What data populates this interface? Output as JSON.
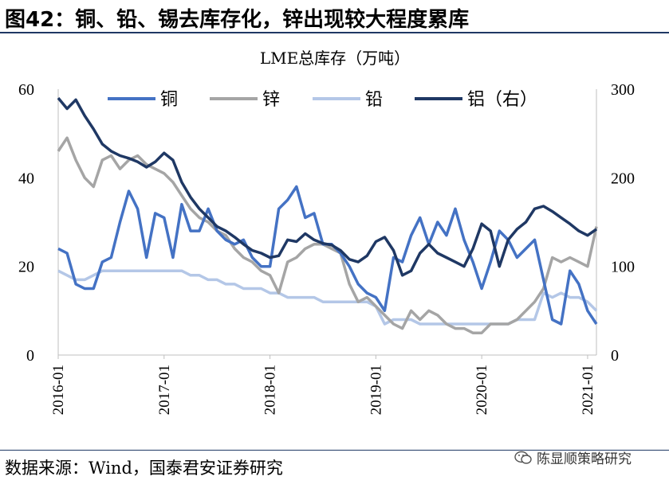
{
  "header": {
    "title": "图42：铜、铅、锡去库存化，锌出现较大程度累库"
  },
  "footer": {
    "source": "数据来源：Wind，国泰君安证券研究",
    "watermark": "陈显顺策略研究"
  },
  "icons": {
    "watermark": "wechat-icon"
  },
  "colors": {
    "copper": "#4472c4",
    "zinc": "#a5a5a5",
    "lead": "#b4c7e7",
    "aluminum": "#1f3864",
    "rule": "#1f3864"
  },
  "chart_data": {
    "type": "line",
    "title": "LME总库存（万吨）",
    "x_ticks": [
      "2016-01",
      "2017-01",
      "2018-01",
      "2019-01",
      "2020-01",
      "2021-01"
    ],
    "y_left": {
      "min": 0,
      "max": 60,
      "ticks": [
        "0",
        "20",
        "40",
        "60"
      ]
    },
    "y_right": {
      "min": 0,
      "max": 300,
      "ticks": [
        "0",
        "100",
        "200",
        "300"
      ]
    },
    "legend_position": "top",
    "grid": false,
    "x_range": [
      "2016-01",
      "2021-02"
    ],
    "series": [
      {
        "name": "铜",
        "axis": "left",
        "key": "copper",
        "points": [
          [
            "2016-01",
            24
          ],
          [
            "2016-02",
            23
          ],
          [
            "2016-03",
            16
          ],
          [
            "2016-04",
            15
          ],
          [
            "2016-05",
            15
          ],
          [
            "2016-06",
            21
          ],
          [
            "2016-07",
            22
          ],
          [
            "2016-08",
            30
          ],
          [
            "2016-09",
            37
          ],
          [
            "2016-10",
            33
          ],
          [
            "2016-11",
            22
          ],
          [
            "2016-12",
            32
          ],
          [
            "2017-01",
            31
          ],
          [
            "2017-02",
            22
          ],
          [
            "2017-03",
            34
          ],
          [
            "2017-04",
            28
          ],
          [
            "2017-05",
            28
          ],
          [
            "2017-06",
            33
          ],
          [
            "2017-07",
            28
          ],
          [
            "2017-08",
            26
          ],
          [
            "2017-09",
            25
          ],
          [
            "2017-10",
            26
          ],
          [
            "2017-11",
            22
          ],
          [
            "2017-12",
            20
          ],
          [
            "2018-01",
            20
          ],
          [
            "2018-02",
            33
          ],
          [
            "2018-03",
            35
          ],
          [
            "2018-04",
            38
          ],
          [
            "2018-05",
            31
          ],
          [
            "2018-06",
            32
          ],
          [
            "2018-07",
            25
          ],
          [
            "2018-08",
            25
          ],
          [
            "2018-09",
            23
          ],
          [
            "2018-10",
            20
          ],
          [
            "2018-11",
            16
          ],
          [
            "2018-12",
            14
          ],
          [
            "2019-01",
            13
          ],
          [
            "2019-02",
            10
          ],
          [
            "2019-03",
            22
          ],
          [
            "2019-04",
            21
          ],
          [
            "2019-05",
            27
          ],
          [
            "2019-06",
            31
          ],
          [
            "2019-07",
            25
          ],
          [
            "2019-08",
            30
          ],
          [
            "2019-09",
            27
          ],
          [
            "2019-10",
            33
          ],
          [
            "2019-11",
            26
          ],
          [
            "2019-12",
            21
          ],
          [
            "2020-01",
            15
          ],
          [
            "2020-02",
            21
          ],
          [
            "2020-03",
            28
          ],
          [
            "2020-04",
            26
          ],
          [
            "2020-05",
            22
          ],
          [
            "2020-06",
            24
          ],
          [
            "2020-07",
            26
          ],
          [
            "2020-08",
            17
          ],
          [
            "2020-09",
            8
          ],
          [
            "2020-10",
            7
          ],
          [
            "2020-11",
            19
          ],
          [
            "2020-12",
            16
          ],
          [
            "2021-01",
            10
          ],
          [
            "2021-02",
            7
          ]
        ]
      },
      {
        "name": "锌",
        "axis": "left",
        "key": "zinc",
        "points": [
          [
            "2016-01",
            46
          ],
          [
            "2016-02",
            49
          ],
          [
            "2016-03",
            44
          ],
          [
            "2016-04",
            40
          ],
          [
            "2016-05",
            38
          ],
          [
            "2016-06",
            44
          ],
          [
            "2016-07",
            45
          ],
          [
            "2016-08",
            42
          ],
          [
            "2016-09",
            44
          ],
          [
            "2016-10",
            45
          ],
          [
            "2016-11",
            43
          ],
          [
            "2016-12",
            42
          ],
          [
            "2017-01",
            41
          ],
          [
            "2017-02",
            39
          ],
          [
            "2017-03",
            36
          ],
          [
            "2017-04",
            33
          ],
          [
            "2017-05",
            31
          ],
          [
            "2017-06",
            30
          ],
          [
            "2017-07",
            28
          ],
          [
            "2017-08",
            27
          ],
          [
            "2017-09",
            24
          ],
          [
            "2017-10",
            22
          ],
          [
            "2017-11",
            21
          ],
          [
            "2017-12",
            19
          ],
          [
            "2018-01",
            18
          ],
          [
            "2018-02",
            14
          ],
          [
            "2018-03",
            21
          ],
          [
            "2018-04",
            22
          ],
          [
            "2018-05",
            24
          ],
          [
            "2018-06",
            25
          ],
          [
            "2018-07",
            25
          ],
          [
            "2018-08",
            24
          ],
          [
            "2018-09",
            23
          ],
          [
            "2018-10",
            16
          ],
          [
            "2018-11",
            12
          ],
          [
            "2018-12",
            13
          ],
          [
            "2019-01",
            11
          ],
          [
            "2019-02",
            9
          ],
          [
            "2019-03",
            7
          ],
          [
            "2019-04",
            6
          ],
          [
            "2019-05",
            10
          ],
          [
            "2019-06",
            8
          ],
          [
            "2019-07",
            10
          ],
          [
            "2019-08",
            9
          ],
          [
            "2019-09",
            7
          ],
          [
            "2019-10",
            6
          ],
          [
            "2019-11",
            6
          ],
          [
            "2019-12",
            5
          ],
          [
            "2020-01",
            5
          ],
          [
            "2020-02",
            7
          ],
          [
            "2020-03",
            7
          ],
          [
            "2020-04",
            7
          ],
          [
            "2020-05",
            8
          ],
          [
            "2020-06",
            10
          ],
          [
            "2020-07",
            12
          ],
          [
            "2020-08",
            15
          ],
          [
            "2020-09",
            22
          ],
          [
            "2020-10",
            21
          ],
          [
            "2020-11",
            22
          ],
          [
            "2020-12",
            21
          ],
          [
            "2021-01",
            20
          ],
          [
            "2021-02",
            29
          ]
        ]
      },
      {
        "name": "铅",
        "axis": "left",
        "key": "lead",
        "points": [
          [
            "2016-01",
            19
          ],
          [
            "2016-02",
            18
          ],
          [
            "2016-03",
            17
          ],
          [
            "2016-04",
            17
          ],
          [
            "2016-05",
            18
          ],
          [
            "2016-06",
            19
          ],
          [
            "2016-07",
            19
          ],
          [
            "2016-08",
            19
          ],
          [
            "2016-09",
            19
          ],
          [
            "2016-10",
            19
          ],
          [
            "2016-11",
            19
          ],
          [
            "2016-12",
            19
          ],
          [
            "2017-01",
            19
          ],
          [
            "2017-02",
            19
          ],
          [
            "2017-03",
            19
          ],
          [
            "2017-04",
            18
          ],
          [
            "2017-05",
            18
          ],
          [
            "2017-06",
            17
          ],
          [
            "2017-07",
            17
          ],
          [
            "2017-08",
            16
          ],
          [
            "2017-09",
            16
          ],
          [
            "2017-10",
            15
          ],
          [
            "2017-11",
            15
          ],
          [
            "2017-12",
            15
          ],
          [
            "2018-01",
            14
          ],
          [
            "2018-02",
            14
          ],
          [
            "2018-03",
            13
          ],
          [
            "2018-04",
            13
          ],
          [
            "2018-05",
            13
          ],
          [
            "2018-06",
            13
          ],
          [
            "2018-07",
            12
          ],
          [
            "2018-08",
            12
          ],
          [
            "2018-09",
            12
          ],
          [
            "2018-10",
            12
          ],
          [
            "2018-11",
            12
          ],
          [
            "2018-12",
            12
          ],
          [
            "2019-01",
            11
          ],
          [
            "2019-02",
            7
          ],
          [
            "2019-03",
            8
          ],
          [
            "2019-04",
            8
          ],
          [
            "2019-05",
            8
          ],
          [
            "2019-06",
            7
          ],
          [
            "2019-07",
            7
          ],
          [
            "2019-08",
            7
          ],
          [
            "2019-09",
            7
          ],
          [
            "2019-10",
            7
          ],
          [
            "2019-11",
            7
          ],
          [
            "2019-12",
            7
          ],
          [
            "2020-01",
            7
          ],
          [
            "2020-02",
            7
          ],
          [
            "2020-03",
            7
          ],
          [
            "2020-04",
            7
          ],
          [
            "2020-05",
            8
          ],
          [
            "2020-06",
            8
          ],
          [
            "2020-07",
            8
          ],
          [
            "2020-08",
            14
          ],
          [
            "2020-09",
            13
          ],
          [
            "2020-10",
            14
          ],
          [
            "2020-11",
            13
          ],
          [
            "2020-12",
            13
          ],
          [
            "2021-01",
            12
          ],
          [
            "2021-02",
            10
          ]
        ]
      },
      {
        "name": "铝（右）",
        "axis": "right",
        "key": "aluminum",
        "points": [
          [
            "2016-01",
            290
          ],
          [
            "2016-02",
            278
          ],
          [
            "2016-03",
            288
          ],
          [
            "2016-04",
            270
          ],
          [
            "2016-05",
            255
          ],
          [
            "2016-06",
            238
          ],
          [
            "2016-07",
            230
          ],
          [
            "2016-08",
            225
          ],
          [
            "2016-09",
            222
          ],
          [
            "2016-10",
            218
          ],
          [
            "2016-11",
            212
          ],
          [
            "2016-12",
            218
          ],
          [
            "2017-01",
            228
          ],
          [
            "2017-02",
            220
          ],
          [
            "2017-03",
            195
          ],
          [
            "2017-04",
            178
          ],
          [
            "2017-05",
            165
          ],
          [
            "2017-06",
            155
          ],
          [
            "2017-07",
            145
          ],
          [
            "2017-08",
            140
          ],
          [
            "2017-09",
            133
          ],
          [
            "2017-10",
            125
          ],
          [
            "2017-11",
            118
          ],
          [
            "2017-12",
            115
          ],
          [
            "2018-01",
            110
          ],
          [
            "2018-02",
            112
          ],
          [
            "2018-03",
            130
          ],
          [
            "2018-04",
            128
          ],
          [
            "2018-05",
            137
          ],
          [
            "2018-06",
            130
          ],
          [
            "2018-07",
            126
          ],
          [
            "2018-08",
            124
          ],
          [
            "2018-09",
            118
          ],
          [
            "2018-10",
            108
          ],
          [
            "2018-11",
            105
          ],
          [
            "2018-12",
            112
          ],
          [
            "2019-01",
            128
          ],
          [
            "2019-02",
            133
          ],
          [
            "2019-03",
            118
          ],
          [
            "2019-04",
            90
          ],
          [
            "2019-05",
            95
          ],
          [
            "2019-06",
            115
          ],
          [
            "2019-07",
            125
          ],
          [
            "2019-08",
            115
          ],
          [
            "2019-09",
            110
          ],
          [
            "2019-10",
            105
          ],
          [
            "2019-11",
            100
          ],
          [
            "2019-12",
            120
          ],
          [
            "2020-01",
            148
          ],
          [
            "2020-02",
            140
          ],
          [
            "2020-03",
            100
          ],
          [
            "2020-04",
            130
          ],
          [
            "2020-05",
            142
          ],
          [
            "2020-06",
            150
          ],
          [
            "2020-07",
            165
          ],
          [
            "2020-08",
            168
          ],
          [
            "2020-09",
            162
          ],
          [
            "2020-10",
            155
          ],
          [
            "2020-11",
            148
          ],
          [
            "2020-12",
            140
          ],
          [
            "2021-01",
            135
          ],
          [
            "2021-02",
            142
          ]
        ]
      }
    ]
  }
}
